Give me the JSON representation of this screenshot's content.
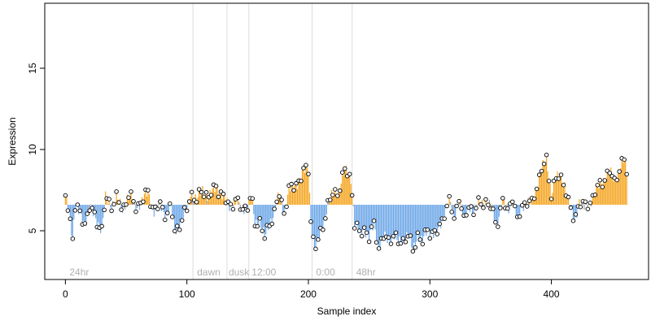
{
  "chart_data": {
    "type": "scatter",
    "xlabel": "Sample index",
    "ylabel": "Expression",
    "xlim": [
      -17,
      480
    ],
    "ylim": [
      2,
      19
    ],
    "xticks": [
      0,
      100,
      200,
      300,
      400
    ],
    "yticks": [
      5,
      10,
      15
    ],
    "reference_line": 6.6,
    "grid": false,
    "legend": "none",
    "colors": {
      "above": "#f5a623",
      "below": "#6fa8e8",
      "segment_neutral": "#a0a0a0",
      "boundary": "#dcdcdc",
      "phase_label": "#b0b0b0",
      "point_fill": "#ffffff",
      "point_stroke": "#000000"
    },
    "phase_boundaries": [
      105,
      133,
      151,
      203,
      236
    ],
    "phases": [
      {
        "label": "24hr",
        "x": 2
      },
      {
        "label": "dawn",
        "x": 107
      },
      {
        "label": "dusk",
        "x": 133
      },
      {
        "label": "12:00",
        "x": 152
      },
      {
        "label": "0:00",
        "x": 205
      },
      {
        "label": "48hr",
        "x": 238
      }
    ],
    "anchors": [
      [
        0,
        7.0
      ],
      [
        3,
        6.2
      ],
      [
        6,
        4.6
      ],
      [
        8,
        6.5
      ],
      [
        12,
        6.0
      ],
      [
        16,
        5.5
      ],
      [
        20,
        6.4
      ],
      [
        25,
        5.8
      ],
      [
        30,
        5.0
      ],
      [
        33,
        7.0
      ],
      [
        38,
        6.6
      ],
      [
        42,
        7.0
      ],
      [
        47,
        6.3
      ],
      [
        52,
        7.2
      ],
      [
        58,
        6.5
      ],
      [
        63,
        6.8
      ],
      [
        68,
        7.4
      ],
      [
        73,
        6.2
      ],
      [
        78,
        6.6
      ],
      [
        83,
        6.0
      ],
      [
        87,
        6.4
      ],
      [
        90,
        5.0
      ],
      [
        95,
        5.5
      ],
      [
        100,
        6.3
      ],
      [
        103,
        7.4
      ],
      [
        108,
        6.8
      ],
      [
        113,
        7.6
      ],
      [
        118,
        7.0
      ],
      [
        124,
        7.8
      ],
      [
        130,
        7.0
      ],
      [
        135,
        6.6
      ],
      [
        140,
        6.8
      ],
      [
        145,
        6.4
      ],
      [
        150,
        6.5
      ],
      [
        153,
        7.1
      ],
      [
        156,
        5.5
      ],
      [
        160,
        5.6
      ],
      [
        164,
        4.5
      ],
      [
        168,
        5.5
      ],
      [
        172,
        6.1
      ],
      [
        176,
        7.2
      ],
      [
        180,
        6.2
      ],
      [
        184,
        7.5
      ],
      [
        188,
        7.7
      ],
      [
        192,
        8.1
      ],
      [
        196,
        8.6
      ],
      [
        200,
        8.8
      ],
      [
        202,
        5.7
      ],
      [
        205,
        3.9
      ],
      [
        208,
        4.3
      ],
      [
        212,
        5.4
      ],
      [
        216,
        6.6
      ],
      [
        220,
        7.2
      ],
      [
        225,
        7.5
      ],
      [
        230,
        8.7
      ],
      [
        235,
        8.3
      ],
      [
        238,
        5.4
      ],
      [
        242,
        4.8
      ],
      [
        246,
        5.2
      ],
      [
        250,
        4.5
      ],
      [
        254,
        5.4
      ],
      [
        258,
        4.0
      ],
      [
        262,
        4.6
      ],
      [
        266,
        4.4
      ],
      [
        270,
        4.8
      ],
      [
        274,
        4.2
      ],
      [
        278,
        4.4
      ],
      [
        282,
        4.8
      ],
      [
        286,
        3.7
      ],
      [
        290,
        4.8
      ],
      [
        294,
        4.3
      ],
      [
        298,
        5.0
      ],
      [
        302,
        4.9
      ],
      [
        307,
        4.9
      ],
      [
        312,
        6.2
      ],
      [
        316,
        6.8
      ],
      [
        320,
        5.7
      ],
      [
        324,
        7.2
      ],
      [
        328,
        5.5
      ],
      [
        332,
        6.6
      ],
      [
        336,
        6.2
      ],
      [
        341,
        6.7
      ],
      [
        346,
        6.8
      ],
      [
        350,
        6.4
      ],
      [
        355,
        5.4
      ],
      [
        360,
        6.8
      ],
      [
        364,
        6.2
      ],
      [
        368,
        7.2
      ],
      [
        372,
        5.5
      ],
      [
        376,
        6.6
      ],
      [
        380,
        6.8
      ],
      [
        384,
        6.6
      ],
      [
        388,
        7.8
      ],
      [
        392,
        8.8
      ],
      [
        396,
        9.3
      ],
      [
        400,
        7.3
      ],
      [
        403,
        8.1
      ],
      [
        407,
        8.3
      ],
      [
        411,
        7.9
      ],
      [
        415,
        6.4
      ],
      [
        419,
        5.6
      ],
      [
        423,
        6.9
      ],
      [
        427,
        6.4
      ],
      [
        432,
        6.8
      ],
      [
        436,
        7.4
      ],
      [
        440,
        7.8
      ],
      [
        444,
        8.3
      ],
      [
        448,
        8.6
      ],
      [
        452,
        8.0
      ],
      [
        456,
        8.9
      ],
      [
        460,
        9.3
      ],
      [
        462,
        8.6
      ]
    ]
  }
}
